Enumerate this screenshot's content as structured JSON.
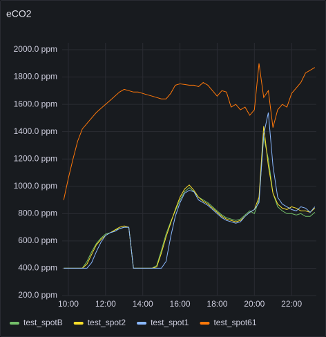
{
  "chart_data": {
    "type": "line",
    "title": "eCO2",
    "x": [
      9.75,
      10,
      10.25,
      10.5,
      10.75,
      11,
      11.25,
      11.5,
      11.75,
      12,
      12.25,
      12.5,
      12.75,
      13,
      13.25,
      13.5,
      13.75,
      14,
      14.25,
      14.5,
      14.75,
      15,
      15.25,
      15.5,
      15.75,
      16,
      16.25,
      16.5,
      16.75,
      17,
      17.25,
      17.5,
      17.75,
      18,
      18.25,
      18.5,
      18.75,
      19,
      19.25,
      19.5,
      19.75,
      20,
      20.25,
      20.5,
      20.75,
      21,
      21.25,
      21.5,
      21.75,
      22,
      22.25,
      22.5,
      22.75,
      23,
      23.25
    ],
    "series": [
      {
        "name": "test_spotB",
        "color": "#73bf69",
        "values": [
          400,
          400,
          400,
          400,
          400,
          450,
          520,
          580,
          620,
          650,
          660,
          680,
          690,
          700,
          700,
          400,
          400,
          400,
          400,
          400,
          420,
          530,
          650,
          740,
          820,
          900,
          960,
          990,
          960,
          920,
          900,
          880,
          850,
          820,
          790,
          770,
          760,
          750,
          760,
          790,
          820,
          800,
          900,
          1360,
          1200,
          950,
          850,
          820,
          800,
          800,
          790,
          800,
          780,
          780,
          810
        ]
      },
      {
        "name": "test_spot2",
        "color": "#fade2a",
        "values": [
          400,
          400,
          400,
          400,
          400,
          430,
          500,
          570,
          610,
          640,
          660,
          680,
          700,
          710,
          700,
          400,
          400,
          400,
          400,
          400,
          410,
          510,
          630,
          730,
          830,
          920,
          980,
          1010,
          970,
          920,
          890,
          870,
          840,
          810,
          780,
          760,
          750,
          740,
          750,
          780,
          810,
          830,
          920,
          1440,
          1150,
          950,
          870,
          840,
          830,
          850,
          840,
          820,
          820,
          810,
          840
        ]
      },
      {
        "name": "test_spot1",
        "color": "#8ab8ff",
        "values": [
          400,
          400,
          400,
          400,
          400,
          400,
          440,
          520,
          590,
          640,
          660,
          670,
          690,
          700,
          700,
          400,
          400,
          400,
          400,
          400,
          400,
          400,
          450,
          630,
          780,
          880,
          950,
          970,
          960,
          900,
          880,
          860,
          830,
          800,
          770,
          750,
          740,
          730,
          740,
          780,
          810,
          830,
          880,
          1380,
          1540,
          1150,
          920,
          870,
          850,
          830,
          820,
          850,
          840,
          810,
          850
        ]
      },
      {
        "name": "test_spot61",
        "color": "#ff780a",
        "values": [
          900,
          1060,
          1200,
          1330,
          1420,
          1460,
          1500,
          1540,
          1570,
          1600,
          1630,
          1660,
          1690,
          1710,
          1700,
          1690,
          1690,
          1680,
          1670,
          1660,
          1650,
          1640,
          1640,
          1680,
          1740,
          1750,
          1745,
          1740,
          1740,
          1730,
          1760,
          1740,
          1700,
          1660,
          1700,
          1690,
          1580,
          1600,
          1560,
          1580,
          1520,
          1560,
          1900,
          1650,
          1700,
          1430,
          1560,
          1600,
          1580,
          1680,
          1720,
          1760,
          1830,
          1850,
          1870
        ]
      }
    ],
    "xlim": [
      9.667,
      23.33
    ],
    "xticks": [
      {
        "value": 10,
        "label": "10:00"
      },
      {
        "value": 12,
        "label": "12:00"
      },
      {
        "value": 14,
        "label": "14:00"
      },
      {
        "value": 16,
        "label": "16:00"
      },
      {
        "value": 18,
        "label": "18:00"
      },
      {
        "value": 20,
        "label": "20:00"
      },
      {
        "value": 22,
        "label": "22:00"
      }
    ],
    "ylim": [
      200,
      2000
    ],
    "yticks": [
      {
        "value": 200,
        "label": "200.0 ppm"
      },
      {
        "value": 400,
        "label": "400.0 ppm"
      },
      {
        "value": 600,
        "label": "600.0 ppm"
      },
      {
        "value": 800,
        "label": "800.0 ppm"
      },
      {
        "value": 1000,
        "label": "1000.0 ppm"
      },
      {
        "value": 1200,
        "label": "1200.0 ppm"
      },
      {
        "value": 1400,
        "label": "1400.0 ppm"
      },
      {
        "value": 1600,
        "label": "1600.0 ppm"
      },
      {
        "value": 1800,
        "label": "1800.0 ppm"
      },
      {
        "value": 2000,
        "label": "2000.0 ppm"
      }
    ],
    "grid": true,
    "legend": "bottom"
  }
}
